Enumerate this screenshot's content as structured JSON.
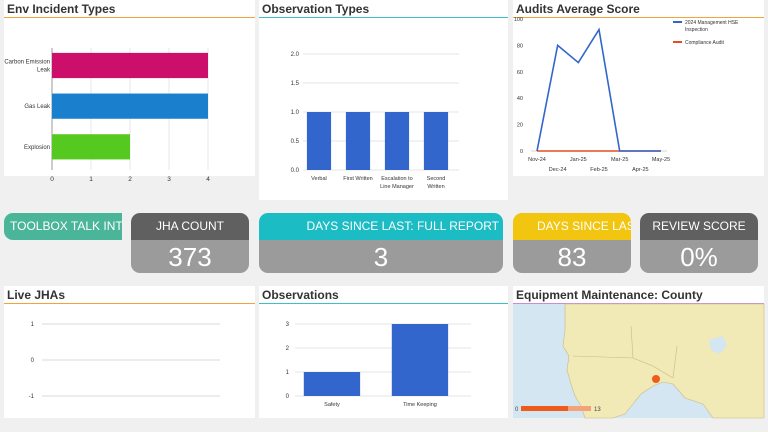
{
  "colors": {
    "orange_line": "#f3a23c",
    "teal_line": "#3cc1c8",
    "purple_line": "#c78ed6",
    "bar_blue": "#3366cc",
    "pink": "#cc0f6a",
    "blue": "#1a7fcc",
    "green": "#55c91f",
    "tile_gray_dark": "#606060",
    "tile_teal": "#1bbcc4",
    "tile_yellow": "#f2c510",
    "tile_greenish": "#4bb59a",
    "tile_body": "#9b9b9b",
    "red_line": "#e94b23"
  },
  "env_incident": {
    "title": "Env Incident Types",
    "chart_data": {
      "type": "bar",
      "orientation": "horizontal",
      "categories": [
        "Carbon Emission Leak",
        "Gas Leak",
        "Explosion"
      ],
      "category_lines": [
        [
          "Carbon Emission",
          "Leak"
        ],
        [
          "Gas Leak"
        ],
        [
          "Explosion"
        ]
      ],
      "values": [
        4,
        4,
        2
      ],
      "xlim": [
        0,
        4
      ],
      "xticks": [
        "0",
        "1",
        "2",
        "3",
        "4"
      ]
    }
  },
  "obs_types": {
    "title": "Observation Types",
    "chart_data": {
      "type": "bar",
      "categories": [
        "Verbal",
        "First Written",
        "Escalation to Line Manager",
        "Second Written"
      ],
      "category_lines": [
        [
          "Verbal"
        ],
        [
          "First Written"
        ],
        [
          "Escalation to",
          "Line Manager"
        ],
        [
          "Second",
          "Written"
        ]
      ],
      "values": [
        1,
        1,
        1,
        1
      ],
      "ylim": [
        0,
        2
      ],
      "yticks": [
        "0.0",
        "0.5",
        "1.0",
        "1.5",
        "2.0"
      ]
    }
  },
  "audits": {
    "title": "Audits Average Score",
    "chart_data": {
      "type": "line",
      "x": [
        "Nov-24",
        "Dec-24",
        "Jan-25",
        "Feb-25",
        "Mar-25",
        "Apr-25",
        "May-25"
      ],
      "series": [
        {
          "name": "2024 Management HSE Inspection",
          "values": [
            0,
            80,
            67,
            92,
            0,
            0,
            0
          ]
        },
        {
          "name": "Compliance Audit",
          "values": [
            0,
            0,
            0,
            0,
            0,
            0,
            0
          ]
        }
      ],
      "ylim": [
        0,
        100
      ],
      "yticks": [
        "0",
        "20",
        "40",
        "60",
        "80",
        "100"
      ],
      "legend": "top-right"
    },
    "legend_lines": [
      [
        "2024 Management HSE",
        "Inspection"
      ],
      [
        "Compliance Audit"
      ]
    ]
  },
  "tiles": {
    "toolbox": {
      "label": "TOOLBOX TALK INTERNAL - C"
    },
    "jha": {
      "label": "JHA COUNT",
      "value": "373"
    },
    "days_full": {
      "label": "DAYS SINCE LAST: FULL REPORT",
      "value": "3"
    },
    "days_acc": {
      "label": "DAYS SINCE LAST: ACCID",
      "value": "83"
    },
    "review": {
      "label": "REVIEW SCORE",
      "value": "0%"
    }
  },
  "live_jha": {
    "title": "Live JHAs",
    "chart_data": {
      "type": "line",
      "series": [],
      "ylim": [
        -1,
        1
      ],
      "yticks": [
        "1",
        "0",
        "-1"
      ]
    }
  },
  "observations": {
    "title": "Observations",
    "chart_data": {
      "type": "bar",
      "categories": [
        "Safety",
        "Time Keeping"
      ],
      "values": [
        1,
        3
      ],
      "ylim": [
        0,
        3
      ],
      "yticks": [
        "0",
        "1",
        "2",
        "3"
      ]
    }
  },
  "equipment": {
    "title": "Equipment Maintenance: County",
    "legend_min": "0",
    "legend_max": "13"
  }
}
